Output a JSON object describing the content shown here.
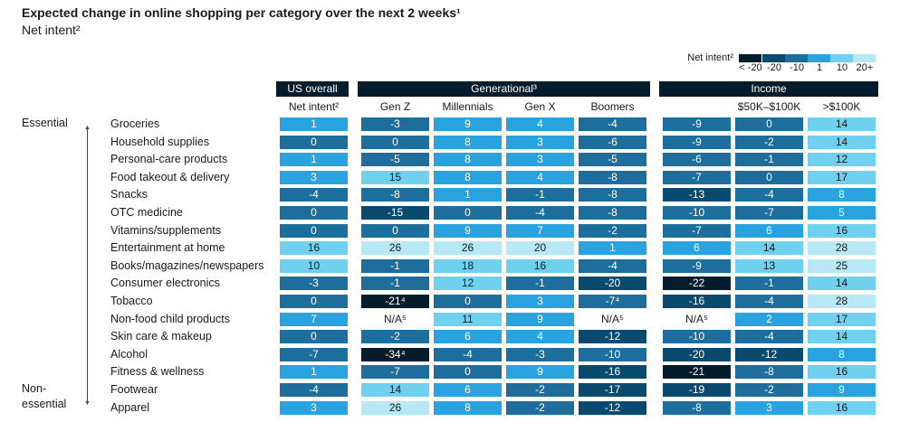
{
  "header": {
    "title": "Expected change in online shopping per category over the next 2 weeks¹",
    "subtitle": "Net intent²"
  },
  "legend": {
    "title": "Net intent²",
    "labels": [
      "< -20",
      "-20",
      "-10",
      "1",
      "10",
      "20+"
    ],
    "colors": [
      "#051c2c",
      "#0a4a6e",
      "#1d6e9c",
      "#29a3e0",
      "#6fd0f0",
      "#b6e9f5"
    ]
  },
  "groups": {
    "us": "US overall",
    "generational": "Generational³",
    "income": "Income"
  },
  "side_labels": {
    "essential": "Essential",
    "non_essential_1": "Non-",
    "non_essential_2": "essential"
  },
  "chart_data": {
    "type": "table",
    "title": "Expected change in online shopping per category over the next 2 weeks¹",
    "subtitle": "Net intent²",
    "columns": [
      "Net intent²",
      "Gen Z",
      "Millennials",
      "Gen X",
      "Boomers",
      "",
      "$50K–$100K",
      ">$100K"
    ],
    "rows": [
      {
        "category": "Groceries",
        "values": [
          "1",
          "-3",
          "9",
          "4",
          "-4",
          "-9",
          "0",
          "14"
        ]
      },
      {
        "category": "Household supplies",
        "values": [
          "0",
          "0",
          "8",
          "3",
          "-6",
          "-9",
          "-2",
          "14"
        ]
      },
      {
        "category": "Personal-care products",
        "values": [
          "1",
          "-5",
          "8",
          "3",
          "-5",
          "-6",
          "-1",
          "12"
        ]
      },
      {
        "category": "Food takeout & delivery",
        "values": [
          "3",
          "15",
          "8",
          "4",
          "-8",
          "-7",
          "0",
          "17"
        ]
      },
      {
        "category": "Snacks",
        "values": [
          "-4",
          "-8",
          "1",
          "-1",
          "-8",
          "-13",
          "-4",
          "8"
        ]
      },
      {
        "category": "OTC medicine",
        "values": [
          "0",
          "-15",
          "0",
          "-4",
          "-8",
          "-10",
          "-7",
          "5"
        ]
      },
      {
        "category": "Vitamins/supplements",
        "values": [
          "0",
          "0",
          "9",
          "7",
          "-2",
          "-7",
          "6",
          "16"
        ]
      },
      {
        "category": "Entertainment at home",
        "values": [
          "16",
          "26",
          "26",
          "20",
          "1",
          "6",
          "14",
          "28"
        ]
      },
      {
        "category": "Books/magazines/newspapers",
        "values": [
          "10",
          "-1",
          "18",
          "16",
          "-4",
          "-9",
          "13",
          "25"
        ]
      },
      {
        "category": "Consumer electronics",
        "values": [
          "-3",
          "-1",
          "12",
          "-1",
          "-20",
          "-22",
          "-1",
          "14"
        ]
      },
      {
        "category": "Tobacco",
        "values": [
          "0",
          "-21⁴",
          "0",
          "3",
          "-7⁴",
          "-16",
          "-4",
          "28"
        ]
      },
      {
        "category": "Non-food child products",
        "values": [
          "7",
          "N/A⁵",
          "11",
          "9",
          "N/A⁵",
          "N/A⁵",
          "2",
          "17"
        ]
      },
      {
        "category": "Skin care & makeup",
        "values": [
          "0",
          "-2",
          "6",
          "4",
          "-12",
          "-10",
          "-4",
          "14"
        ]
      },
      {
        "category": "Alcohol",
        "values": [
          "-7",
          "-34⁴",
          "-4",
          "-3",
          "-10",
          "-20",
          "-12",
          "8"
        ]
      },
      {
        "category": "Fitness & wellness",
        "values": [
          "1",
          "-7",
          "0",
          "9",
          "-16",
          "-21",
          "-8",
          "16"
        ]
      },
      {
        "category": "Footwear",
        "values": [
          "-4",
          "14",
          "6",
          "-2",
          "-17",
          "-19",
          "-2",
          "9"
        ]
      },
      {
        "category": "Apparel",
        "values": [
          "3",
          "26",
          "8",
          "-2",
          "-12",
          "-8",
          "3",
          "16"
        ]
      }
    ]
  }
}
